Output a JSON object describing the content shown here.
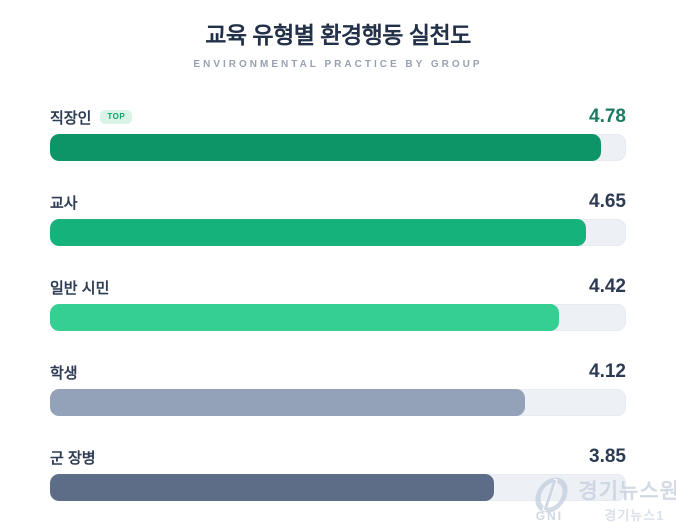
{
  "title": "교육 유형별 환경행동 실천도",
  "subtitle": "ENVIRONMENTAL PRACTICE BY GROUP",
  "chart_data": {
    "type": "bar",
    "orientation": "horizontal",
    "title": "교육 유형별 환경행동 실천도",
    "subtitle": "ENVIRONMENTAL PRACTICE BY GROUP",
    "categories": [
      "직장인",
      "교사",
      "일반 시민",
      "학생",
      "군 장병"
    ],
    "values": [
      4.78,
      4.65,
      4.42,
      4.12,
      3.85
    ],
    "xlim": [
      0,
      5
    ],
    "grid": false,
    "legend": false,
    "annotations": [
      {
        "category": "직장인",
        "badge": "TOP"
      }
    ],
    "bar_colors": [
      "#0d9467",
      "#15b27b",
      "#36cf92",
      "#93a2b8",
      "#5d6d87"
    ],
    "track_color": "#edf1f6"
  },
  "rows": [
    {
      "label": "직장인",
      "badge": "TOP",
      "value": "4.78",
      "pct": 95.6,
      "color": "#0d9467",
      "value_color": "#1d7a62"
    },
    {
      "label": "교사",
      "value": "4.65",
      "pct": 93.0,
      "color": "#15b27b",
      "value_color": "#2d3a53"
    },
    {
      "label": "일반 시민",
      "value": "4.42",
      "pct": 88.4,
      "color": "#36cf92",
      "value_color": "#2d3a53"
    },
    {
      "label": "학생",
      "value": "4.12",
      "pct": 82.4,
      "color": "#93a2b8",
      "value_color": "#2d3a53"
    },
    {
      "label": "군 장병",
      "value": "3.85",
      "pct": 77.0,
      "color": "#5d6d87",
      "value_color": "#2d3a53"
    }
  ],
  "watermark": {
    "logo_text": "GNI",
    "line1": "경기뉴스원",
    "line2": "경기뉴스1"
  },
  "colors": {
    "title": "#223049",
    "subtitle": "#98a1af",
    "label": "#2e3c55",
    "badge_bg": "#d9f3e6",
    "badge_text": "#12a26b",
    "watermark": "#c3cedd"
  }
}
